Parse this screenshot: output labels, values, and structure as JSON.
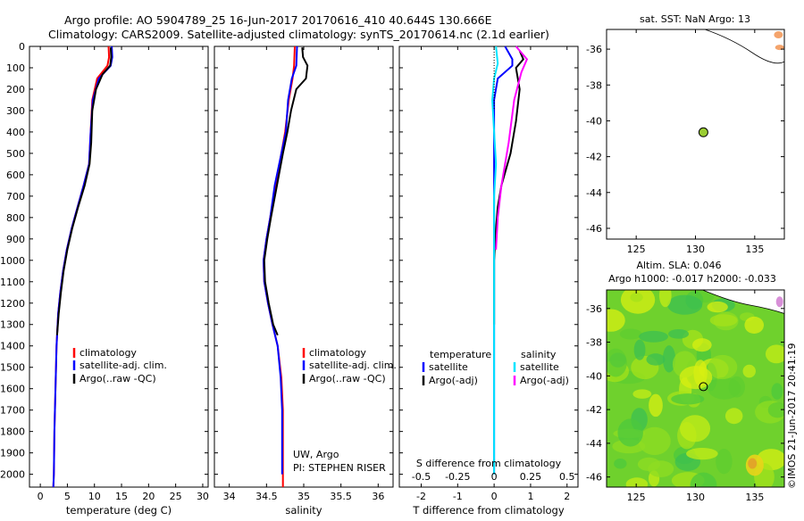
{
  "header": {
    "line1": "Argo profile: AO 5904789_25 16-Jun-2017 20170616_410 40.644S 130.666E",
    "line2": "Climatology: CARS2009. Satellite-adjusted climatology: synTS_20170614.nc (2.1d earlier)"
  },
  "stamp": "©IMOS 21-Jun-2017 20:41:19",
  "colors": {
    "climatology": "#ff0000",
    "satellite": "#0000ff",
    "argo": "#000000",
    "sat_diff_s": "#00e5ff",
    "argo_diff_s": "#ff00ff",
    "map_point": "#9acd32"
  },
  "chart_data": [
    {
      "type": "line",
      "xlabel": "temperature (deg C)",
      "ylabel": "",
      "xlim": [
        -2,
        31
      ],
      "ylim": [
        2060,
        0
      ],
      "xticks": [
        "0",
        "5",
        "10",
        "15",
        "20",
        "25",
        "30"
      ],
      "yticks": [
        "0",
        "100",
        "200",
        "300",
        "400",
        "500",
        "600",
        "700",
        "800",
        "900",
        "1000",
        "1100",
        "1200",
        "1300",
        "1400",
        "1500",
        "1600",
        "1700",
        "1800",
        "1900",
        "2000"
      ],
      "legend": [
        "climatology",
        "satellite-adj. clim.",
        "Argo(..raw -QC)"
      ],
      "series": [
        {
          "name": "climatology",
          "color": "#ff0000",
          "points": [
            [
              12.6,
              0
            ],
            [
              12.7,
              50
            ],
            [
              12.4,
              90
            ],
            [
              10.5,
              150
            ],
            [
              9.6,
              250
            ],
            [
              9.3,
              400
            ],
            [
              9.0,
              550
            ],
            [
              8.0,
              650
            ],
            [
              6.9,
              750
            ],
            [
              5.8,
              850
            ],
            [
              4.9,
              950
            ],
            [
              4.2,
              1050
            ],
            [
              3.7,
              1150
            ],
            [
              3.3,
              1250
            ],
            [
              3.0,
              1400
            ],
            [
              2.8,
              1600
            ],
            [
              2.6,
              1800
            ],
            [
              2.5,
              2000
            ],
            [
              2.4,
              2060
            ]
          ]
        },
        {
          "name": "satellite-adj. clim.",
          "color": "#0000ff",
          "points": [
            [
              13.2,
              0
            ],
            [
              13.3,
              50
            ],
            [
              13.0,
              90
            ],
            [
              10.8,
              150
            ],
            [
              9.7,
              250
            ],
            [
              9.3,
              400
            ],
            [
              9.0,
              550
            ],
            [
              8.0,
              650
            ],
            [
              6.9,
              750
            ],
            [
              5.8,
              850
            ],
            [
              4.9,
              950
            ],
            [
              4.2,
              1050
            ],
            [
              3.7,
              1150
            ],
            [
              3.3,
              1250
            ],
            [
              3.0,
              1400
            ],
            [
              2.8,
              1600
            ],
            [
              2.6,
              1800
            ],
            [
              2.5,
              2000
            ],
            [
              2.4,
              2060
            ]
          ]
        },
        {
          "name": "Argo(..raw -QC)",
          "color": "#000000",
          "points": [
            [
              13.0,
              5
            ],
            [
              13.1,
              50
            ],
            [
              12.9,
              90
            ],
            [
              11.5,
              130
            ],
            [
              10.3,
              200
            ],
            [
              9.6,
              300
            ],
            [
              9.4,
              450
            ],
            [
              9.1,
              550
            ],
            [
              8.2,
              650
            ],
            [
              7.0,
              750
            ],
            [
              5.9,
              850
            ],
            [
              5.0,
              950
            ],
            [
              4.3,
              1050
            ],
            [
              3.8,
              1150
            ],
            [
              3.4,
              1250
            ],
            [
              3.1,
              1350
            ]
          ]
        }
      ]
    },
    {
      "type": "line",
      "xlabel": "salinity",
      "xlim": [
        33.8,
        36.2
      ],
      "ylim": [
        2060,
        0
      ],
      "xticks": [
        "34",
        "34.5",
        "35",
        "35.5",
        "36"
      ],
      "legend": [
        "climatology",
        "satellite-adj. clim.",
        "Argo(..raw -QC)"
      ],
      "annotations": [
        "UW, Argo",
        "PI: STEPHEN RISER"
      ],
      "series": [
        {
          "name": "climatology",
          "color": "#ff0000",
          "points": [
            [
              34.88,
              0
            ],
            [
              34.87,
              90
            ],
            [
              34.85,
              150
            ],
            [
              34.8,
              250
            ],
            [
              34.75,
              400
            ],
            [
              34.7,
              500
            ],
            [
              34.62,
              650
            ],
            [
              34.55,
              800
            ],
            [
              34.5,
              900
            ],
            [
              34.46,
              1000
            ],
            [
              34.47,
              1100
            ],
            [
              34.52,
              1200
            ],
            [
              34.58,
              1300
            ],
            [
              34.65,
              1400
            ],
            [
              34.7,
              1550
            ],
            [
              34.72,
              1700
            ],
            [
              34.72,
              1900
            ],
            [
              34.72,
              2060
            ]
          ]
        },
        {
          "name": "satellite-adj. clim.",
          "color": "#0000ff",
          "points": [
            [
              34.91,
              0
            ],
            [
              34.9,
              90
            ],
            [
              34.84,
              150
            ],
            [
              34.79,
              250
            ],
            [
              34.76,
              400
            ],
            [
              34.7,
              500
            ],
            [
              34.61,
              650
            ],
            [
              34.55,
              800
            ],
            [
              34.5,
              900
            ],
            [
              34.46,
              1000
            ],
            [
              34.47,
              1100
            ],
            [
              34.52,
              1200
            ],
            [
              34.58,
              1300
            ],
            [
              34.65,
              1400
            ],
            [
              34.69,
              1550
            ],
            [
              34.71,
              1700
            ],
            [
              34.71,
              1900
            ],
            [
              34.71,
              2000
            ]
          ]
        },
        {
          "name": "Argo(..raw -QC)",
          "color": "#000000",
          "points": [
            [
              34.98,
              5
            ],
            [
              34.99,
              50
            ],
            [
              35.05,
              90
            ],
            [
              35.03,
              150
            ],
            [
              34.9,
              200
            ],
            [
              34.83,
              300
            ],
            [
              34.78,
              400
            ],
            [
              34.72,
              500
            ],
            [
              34.64,
              650
            ],
            [
              34.56,
              800
            ],
            [
              34.51,
              900
            ],
            [
              34.47,
              1000
            ],
            [
              34.48,
              1100
            ],
            [
              34.53,
              1200
            ],
            [
              34.59,
              1300
            ],
            [
              34.65,
              1350
            ]
          ]
        }
      ]
    },
    {
      "type": "line",
      "xlabel": "T difference from climatology",
      "top_xlabel": "S difference from climatology",
      "xlim": [
        -2.6,
        2.3
      ],
      "ylim": [
        2060,
        0
      ],
      "xticks": [
        "-2",
        "-1",
        "0",
        "1",
        "2"
      ],
      "top_xticks": [
        "-0.5",
        "-0.25",
        "0",
        "0.25",
        "0.5"
      ],
      "legend_headers": [
        "temperature",
        "salinity"
      ],
      "legend": [
        "satellite",
        "Argo(-adj)",
        "satellite",
        "Argo(-adj)"
      ],
      "series": [
        {
          "name": "satellite",
          "quantity": "temperature",
          "color": "#0000ff",
          "points": [
            [
              0.3,
              0
            ],
            [
              0.5,
              60
            ],
            [
              0.5,
              90
            ],
            [
              0.1,
              150
            ],
            [
              0.0,
              250
            ],
            [
              0.0,
              450
            ],
            [
              0.0,
              600
            ],
            [
              0.0,
              700
            ],
            [
              0.0,
              1000
            ],
            [
              0.0,
              2000
            ]
          ]
        },
        {
          "name": "Argo(-adj)",
          "quantity": "temperature",
          "color": "#000000",
          "points": [
            [
              0.7,
              20
            ],
            [
              0.8,
              60
            ],
            [
              0.6,
              100
            ],
            [
              0.7,
              200
            ],
            [
              0.6,
              350
            ],
            [
              0.45,
              500
            ],
            [
              0.2,
              650
            ],
            [
              0.1,
              750
            ],
            [
              0.05,
              850
            ],
            [
              0.0,
              1000
            ],
            [
              0.0,
              1300
            ]
          ]
        },
        {
          "name": "satellite",
          "quantity": "salinity",
          "color": "#00e5ff",
          "points": [
            [
              0.05,
              0
            ],
            [
              0.1,
              80
            ],
            [
              0.0,
              150
            ],
            [
              -0.05,
              250
            ],
            [
              0.0,
              400
            ],
            [
              0.05,
              550
            ],
            [
              0.0,
              700
            ],
            [
              0.0,
              1000
            ],
            [
              0.0,
              2000
            ]
          ]
        },
        {
          "name": "Argo(-adj)",
          "quantity": "salinity",
          "color": "#ff00ff",
          "points": [
            [
              0.6,
              0
            ],
            [
              0.9,
              60
            ],
            [
              0.75,
              120
            ],
            [
              0.55,
              250
            ],
            [
              0.4,
              450
            ],
            [
              0.2,
              650
            ],
            [
              0.1,
              800
            ],
            [
              0.05,
              950
            ]
          ]
        }
      ]
    },
    {
      "type": "scatter",
      "title": "sat. SST: NaN Argo: 13",
      "xlim": [
        122.5,
        137.5
      ],
      "ylim": [
        -46.6,
        -34.9
      ],
      "xticks": [
        "125",
        "130",
        "135"
      ],
      "yticks": [
        "-36",
        "-38",
        "-40",
        "-42",
        "-44",
        "-46"
      ],
      "points": [
        {
          "x": 130.67,
          "y": -40.64
        }
      ]
    },
    {
      "type": "heatmap",
      "title_lines": [
        "Altim. SLA: 0.046",
        "Argo h1000: -0.017 h2000: -0.033"
      ],
      "xlim": [
        122.5,
        137.5
      ],
      "ylim": [
        -46.6,
        -34.9
      ],
      "xticks": [
        "125",
        "130",
        "135"
      ],
      "yticks": [
        "-36",
        "-38",
        "-40",
        "-42",
        "-44",
        "-46"
      ],
      "points": [
        {
          "x": 130.67,
          "y": -40.64
        }
      ]
    }
  ]
}
